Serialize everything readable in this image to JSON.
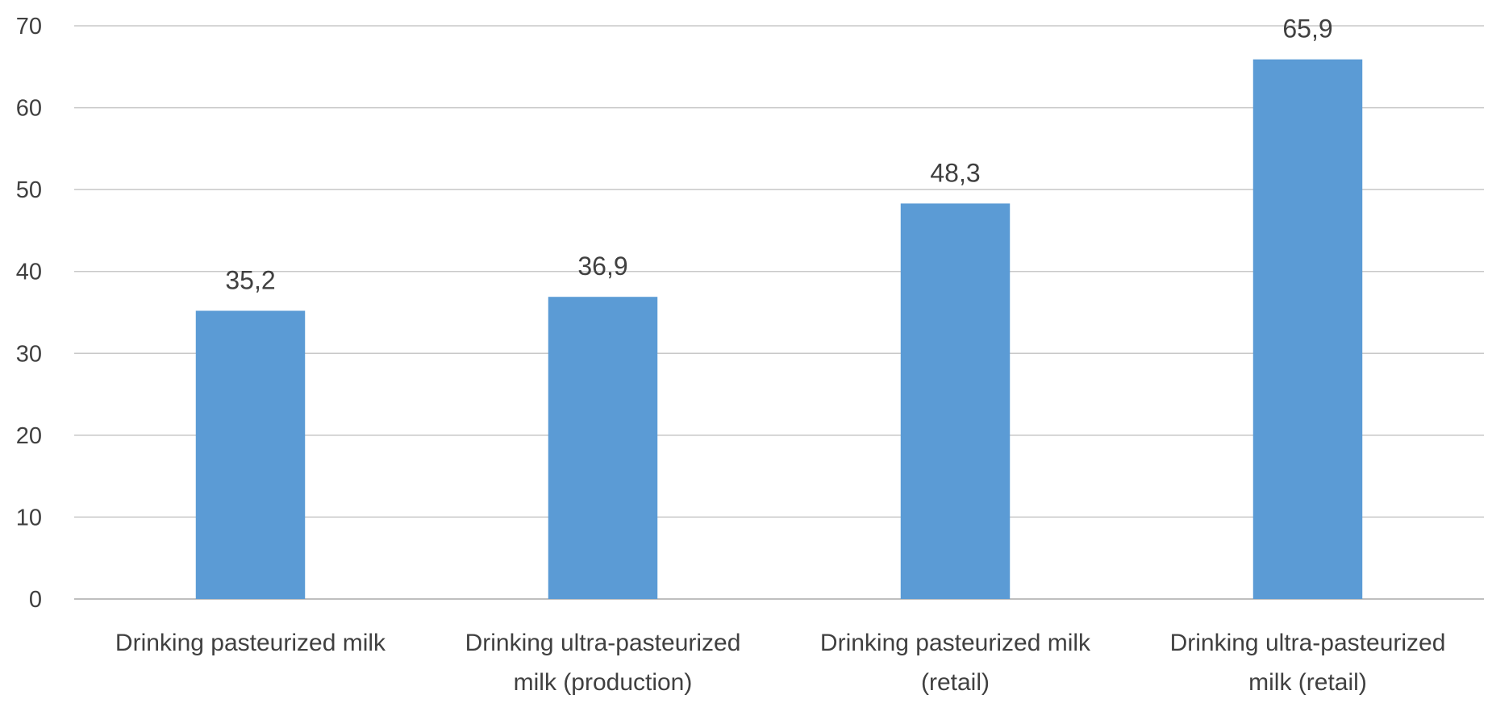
{
  "chart_data": {
    "type": "bar",
    "title": "",
    "xlabel": "",
    "ylabel": "",
    "categories": [
      [
        "Drinking pasteurized milk"
      ],
      [
        "Drinking ultra-pasteurized",
        "milk (production)"
      ],
      [
        "Drinking pasteurized milk",
        "(retail)"
      ],
      [
        "Drinking ultra-pasteurized",
        "milk (retail)"
      ]
    ],
    "values": [
      35.2,
      36.9,
      48.3,
      65.9
    ],
    "value_labels": [
      "35,2",
      "36,9",
      "48,3",
      "65,9"
    ],
    "ylim": [
      0,
      70
    ],
    "yticks": [
      0,
      10,
      20,
      30,
      40,
      50,
      60,
      70
    ],
    "grid": true,
    "legend": "none",
    "colors": {
      "bar": "#5b9bd5",
      "grid": "#c8c8c8",
      "axis": "#bfbfbf",
      "text": "#404040"
    }
  }
}
